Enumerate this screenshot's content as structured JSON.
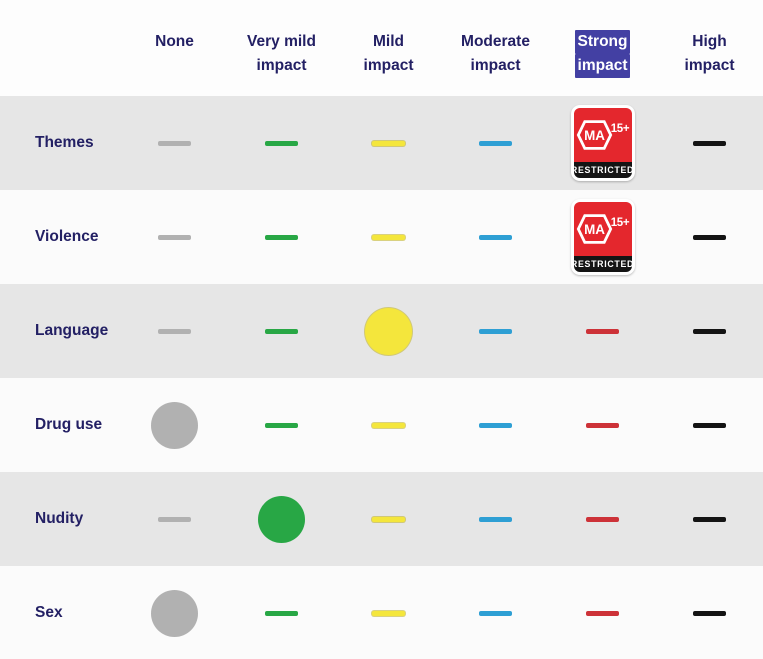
{
  "header": {
    "columns": [
      {
        "line1": "None",
        "line2": "",
        "highlighted": false
      },
      {
        "line1": "Very mild",
        "line2": "impact",
        "highlighted": false
      },
      {
        "line1": "Mild",
        "line2": "impact",
        "highlighted": false
      },
      {
        "line1": "Moderate",
        "line2": "impact",
        "highlighted": false
      },
      {
        "line1": "Strong",
        "line2": "impact",
        "highlighted": true
      },
      {
        "line1": "High",
        "line2": "impact",
        "highlighted": false
      }
    ]
  },
  "badge": {
    "rating": "MA",
    "age": "15+",
    "restricted": "RESTRICTED"
  },
  "colors": {
    "gray": "#b1b1b1",
    "green": "#28a745",
    "yellow": "#f4e63c",
    "blue": "#2e9fd4",
    "red": "#cd3238",
    "black": "#141414",
    "navy_text": "#232064",
    "highlight_bg": "#4340a3",
    "badge_red": "#e4272d",
    "badge_black": "#141414",
    "row_gray_bg": "#e6e6e6",
    "row_white_bg": "#fbfbfb"
  },
  "rows": [
    {
      "label": "Themes",
      "shade": "gray",
      "cells": [
        {
          "type": "dash",
          "color": "gray"
        },
        {
          "type": "dash",
          "color": "green"
        },
        {
          "type": "dash",
          "color": "yellow"
        },
        {
          "type": "dash",
          "color": "blue"
        },
        {
          "type": "badge"
        },
        {
          "type": "dash",
          "color": "black"
        }
      ]
    },
    {
      "label": "Violence",
      "shade": "white",
      "cells": [
        {
          "type": "dash",
          "color": "gray"
        },
        {
          "type": "dash",
          "color": "green"
        },
        {
          "type": "dash",
          "color": "yellow"
        },
        {
          "type": "dash",
          "color": "blue"
        },
        {
          "type": "badge"
        },
        {
          "type": "dash",
          "color": "black"
        }
      ]
    },
    {
      "label": "Language",
      "shade": "gray",
      "cells": [
        {
          "type": "dash",
          "color": "gray"
        },
        {
          "type": "dash",
          "color": "green"
        },
        {
          "type": "dot",
          "color": "yellow"
        },
        {
          "type": "dash",
          "color": "blue"
        },
        {
          "type": "dash",
          "color": "red"
        },
        {
          "type": "dash",
          "color": "black"
        }
      ]
    },
    {
      "label": "Drug use",
      "shade": "white",
      "cells": [
        {
          "type": "dot",
          "color": "gray"
        },
        {
          "type": "dash",
          "color": "green"
        },
        {
          "type": "dash",
          "color": "yellow"
        },
        {
          "type": "dash",
          "color": "blue"
        },
        {
          "type": "dash",
          "color": "red"
        },
        {
          "type": "dash",
          "color": "black"
        }
      ]
    },
    {
      "label": "Nudity",
      "shade": "gray",
      "cells": [
        {
          "type": "dash",
          "color": "gray"
        },
        {
          "type": "dot",
          "color": "green"
        },
        {
          "type": "dash",
          "color": "yellow"
        },
        {
          "type": "dash",
          "color": "blue"
        },
        {
          "type": "dash",
          "color": "red"
        },
        {
          "type": "dash",
          "color": "black"
        }
      ]
    },
    {
      "label": "Sex",
      "shade": "white",
      "cells": [
        {
          "type": "dot",
          "color": "gray"
        },
        {
          "type": "dash",
          "color": "green"
        },
        {
          "type": "dash",
          "color": "yellow"
        },
        {
          "type": "dash",
          "color": "blue"
        },
        {
          "type": "dash",
          "color": "red"
        },
        {
          "type": "dash",
          "color": "black"
        }
      ]
    }
  ]
}
